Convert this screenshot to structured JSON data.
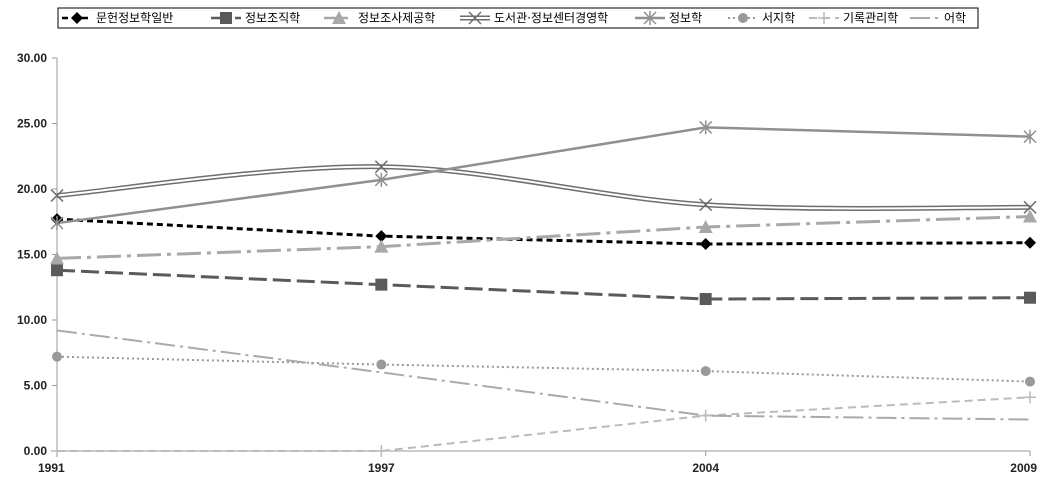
{
  "chart_data": {
    "type": "line",
    "categories": [
      "1991",
      "1997",
      "2004",
      "2009"
    ],
    "ylim": [
      0,
      30
    ],
    "yticks": [
      "0.00",
      "5.00",
      "10.00",
      "15.00",
      "20.00",
      "25.00",
      "30.00"
    ],
    "grid": false,
    "legend_position": "top",
    "series": [
      {
        "name": "문헌정보학일반",
        "values": [
          17.7,
          16.4,
          15.8,
          15.9
        ],
        "color": "#000000",
        "dash": "6,4",
        "width": 3,
        "marker": "diamond",
        "curved": false
      },
      {
        "name": "정보조직학",
        "values": [
          13.8,
          12.7,
          11.6,
          11.7
        ],
        "color": "#5a5a5a",
        "dash": "18,6",
        "width": 3,
        "marker": "square",
        "curved": false
      },
      {
        "name": "정보조사제공학",
        "values": [
          14.7,
          15.6,
          17.1,
          17.9
        ],
        "color": "#a8a8a8",
        "dash": "24,6,4,6",
        "width": 3,
        "marker": "triangle",
        "curved": false
      },
      {
        "name": "도서관·정보센터경영학",
        "values": [
          19.5,
          21.7,
          18.8,
          18.6
        ],
        "color": "#6e6e6e",
        "dash": "",
        "width": 1.5,
        "double": true,
        "marker": "x",
        "curved": true
      },
      {
        "name": "정보학",
        "values": [
          17.4,
          20.7,
          24.7,
          24.0
        ],
        "color": "#909090",
        "dash": "",
        "width": 2.5,
        "marker": "star",
        "curved": false
      },
      {
        "name": "서지학",
        "values": [
          7.2,
          6.6,
          6.1,
          5.3
        ],
        "color": "#999999",
        "dash": "2,3",
        "width": 2,
        "marker": "circle",
        "curved": false
      },
      {
        "name": "기록관리학",
        "values": [
          0.0,
          0.0,
          2.7,
          4.1
        ],
        "color": "#bbbbbb",
        "dash": "8,5",
        "width": 2,
        "marker": "plus",
        "curved": false
      },
      {
        "name": "어학",
        "values": [
          9.2,
          6.0,
          2.7,
          2.4
        ],
        "color": "#aaaaaa",
        "dash": "20,5,3,5",
        "width": 2,
        "marker": "none",
        "curved": false
      }
    ]
  }
}
